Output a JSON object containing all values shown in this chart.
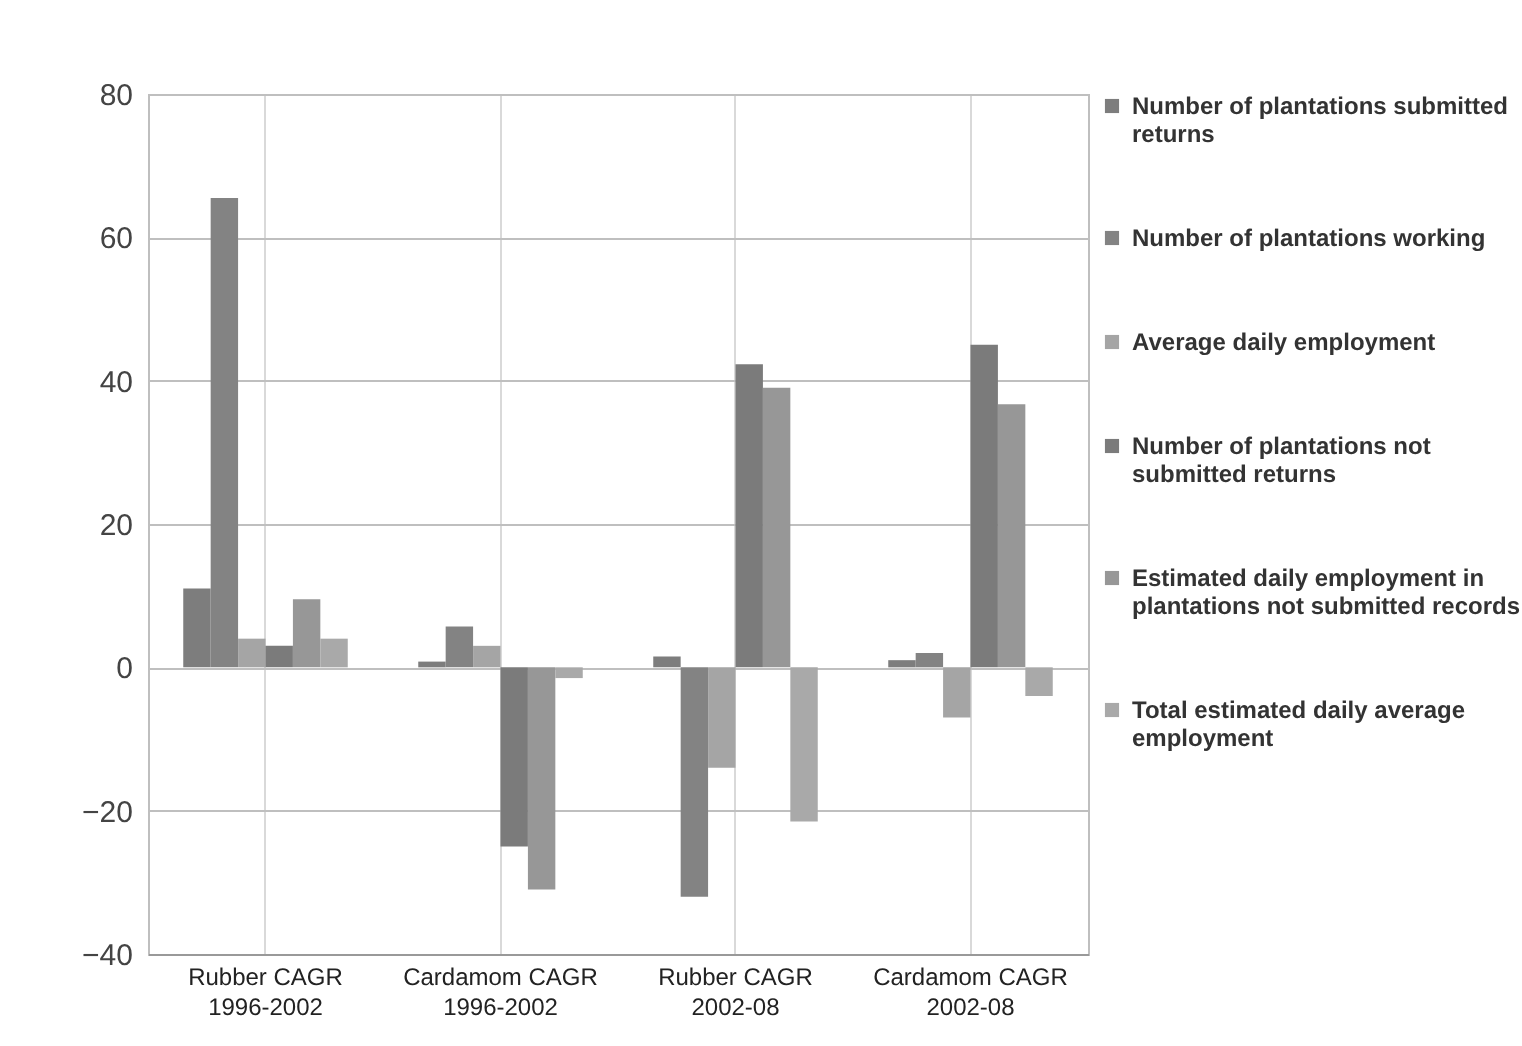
{
  "chart_data": {
    "type": "bar",
    "categories": [
      "Rubber CAGR 1996-2002",
      "Cardamom CAGR 1996-2002",
      "Rubber CAGR 2002-08",
      "Cardamom CAGR 2002-08"
    ],
    "series": [
      {
        "name": "Number of plantations submitted returns",
        "color": "#7d7d7d",
        "values": [
          11,
          0.8,
          1.5,
          1
        ]
      },
      {
        "name": "Number of plantations working",
        "color": "#838383",
        "values": [
          65.5,
          5.7,
          -32,
          2
        ]
      },
      {
        "name": "Average daily employment",
        "color": "#a5a5a5",
        "values": [
          4,
          3,
          -14,
          -7
        ]
      },
      {
        "name": "Number of plantations not submitted returns",
        "color": "#7b7b7b",
        "values": [
          3,
          -25,
          42.3,
          45
        ]
      },
      {
        "name": "Estimated daily employment in plantations not submitted records",
        "color": "#979797",
        "values": [
          9.5,
          -31,
          39,
          36.7
        ]
      },
      {
        "name": "Total estimated daily average employment",
        "color": "#a9a9a9",
        "values": [
          4,
          -1.5,
          -21.5,
          -4
        ]
      }
    ],
    "ylim": [
      -40,
      80
    ],
    "yticks": [
      -40,
      -20,
      0,
      20,
      40,
      60,
      80
    ],
    "grid": true,
    "legend": "right"
  }
}
